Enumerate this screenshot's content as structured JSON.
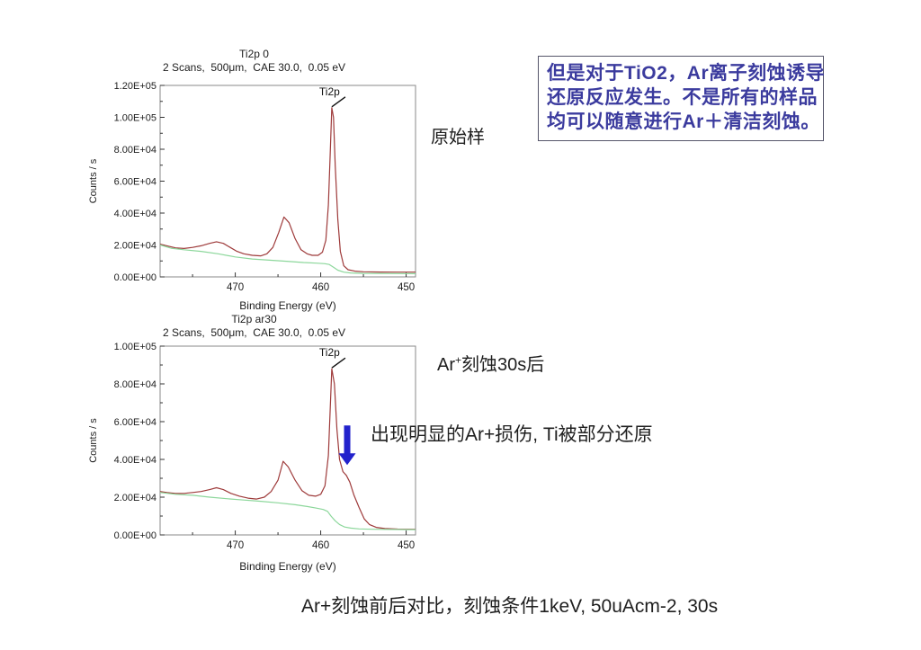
{
  "slide": {
    "background": "#ffffff",
    "note_box": {
      "text_color": "#3b3b9e",
      "border_color": "#55556a",
      "lines": [
        "但是对于TiO2，Ar离子刻蚀诱导",
        "还原反应发生。不是所有的样品",
        "均可以随意进行Ar＋清洁刻蚀。"
      ]
    },
    "labels": {
      "original_sample": "原始样",
      "after_etch_prefix": "Ar",
      "after_etch_sup": "+",
      "after_etch_suffix": "刻蚀30s后",
      "damage_note": "出现明显的Ar+损伤, Ti被部分还原",
      "bottom_caption": "Ar+刻蚀前后对比，刻蚀条件1keV,  50uAcm-2, 30s"
    }
  },
  "chart_data": [
    {
      "type": "line",
      "title": "Ti2p 0",
      "subtitle": "2 Scans,  500μm,  CAE 30.0,  0.05 eV",
      "xlabel": "Binding Energy (eV)",
      "ylabel": "Counts / s",
      "x_axis_reversed": true,
      "xlim": [
        478.8,
        448.9
      ],
      "ylim": [
        0,
        120000
      ],
      "y_tick_labels": [
        "1.20E+05",
        "1.00E+05",
        "8.00E+04",
        "6.00E+04",
        "4.00E+04",
        "2.00E+04",
        "0.00E+00"
      ],
      "x_major_ticks": [
        470,
        460,
        450
      ],
      "x_minor_ticks": [
        475,
        465,
        455
      ],
      "peak": {
        "label": "Ti2p",
        "x": 458.7,
        "y": 106000
      },
      "series": [
        {
          "name": "spectrum",
          "color": "#9e3a3a",
          "points": [
            [
              478.8,
              20500
            ],
            [
              478,
              19500
            ],
            [
              477,
              18200
            ],
            [
              476,
              17800
            ],
            [
              475,
              18500
            ],
            [
              474,
              19500
            ],
            [
              473,
              21000
            ],
            [
              472.2,
              22000
            ],
            [
              471.4,
              21000
            ],
            [
              470.6,
              18500
            ],
            [
              469.8,
              16000
            ],
            [
              469,
              14500
            ],
            [
              468,
              13500
            ],
            [
              467,
              13200
            ],
            [
              466.3,
              14500
            ],
            [
              465.6,
              18500
            ],
            [
              464.9,
              28000
            ],
            [
              464.3,
              37500
            ],
            [
              463.7,
              34000
            ],
            [
              463,
              24000
            ],
            [
              462.3,
              17000
            ],
            [
              461.6,
              14500
            ],
            [
              461,
              13500
            ],
            [
              460.3,
              13500
            ],
            [
              459.8,
              15500
            ],
            [
              459.4,
              23000
            ],
            [
              459.1,
              45000
            ],
            [
              458.9,
              75000
            ],
            [
              458.7,
              106000
            ],
            [
              458.5,
              100000
            ],
            [
              458.3,
              70000
            ],
            [
              458,
              36000
            ],
            [
              457.7,
              16000
            ],
            [
              457.3,
              7000
            ],
            [
              456.8,
              4500
            ],
            [
              456,
              3600
            ],
            [
              455,
              3200
            ],
            [
              453,
              3050
            ],
            [
              451,
              3000
            ],
            [
              448.9,
              3000
            ]
          ]
        },
        {
          "name": "background",
          "color": "#8cd79b",
          "points": [
            [
              478.8,
              20000
            ],
            [
              477.5,
              18000
            ],
            [
              476,
              17000
            ],
            [
              474,
              16000
            ],
            [
              472,
              14500
            ],
            [
              470,
              12500
            ],
            [
              468,
              11200
            ],
            [
              466,
              10500
            ],
            [
              464,
              9800
            ],
            [
              462,
              9000
            ],
            [
              460.5,
              8600
            ],
            [
              459.5,
              8300
            ],
            [
              459,
              7800
            ],
            [
              458.5,
              6000
            ],
            [
              458,
              4200
            ],
            [
              457.3,
              3000
            ],
            [
              456.5,
              2500
            ],
            [
              455,
              2200
            ],
            [
              452,
              2100
            ],
            [
              448.9,
              2000
            ]
          ]
        }
      ]
    },
    {
      "type": "line",
      "title": "Ti2p ar30",
      "subtitle": "2 Scans,  500μm,  CAE 30.0,  0.05 eV",
      "xlabel": "Binding Energy (eV)",
      "ylabel": "Counts / s",
      "x_axis_reversed": true,
      "xlim": [
        478.8,
        448.9
      ],
      "ylim": [
        0,
        100000
      ],
      "y_tick_labels": [
        "1.00E+05",
        "8.00E+04",
        "6.00E+04",
        "4.00E+04",
        "2.00E+04",
        "0.00E+00"
      ],
      "x_major_ticks": [
        470,
        460,
        450
      ],
      "x_minor_ticks": [
        475,
        465,
        455
      ],
      "peak": {
        "label": "Ti2p",
        "x": 458.7,
        "y": 88000
      },
      "damage_arrow": {
        "x": 456.9,
        "y_from": 58000,
        "y_to": 37000,
        "color": "#2222cc"
      },
      "series": [
        {
          "name": "spectrum",
          "color": "#9e3a3a",
          "points": [
            [
              478.8,
              23000
            ],
            [
              478,
              22500
            ],
            [
              477,
              22000
            ],
            [
              476,
              22000
            ],
            [
              475,
              22500
            ],
            [
              474,
              23000
            ],
            [
              473,
              24000
            ],
            [
              472.2,
              25000
            ],
            [
              471.4,
              24000
            ],
            [
              470.5,
              22000
            ],
            [
              469.5,
              20500
            ],
            [
              468.5,
              19500
            ],
            [
              467.5,
              19000
            ],
            [
              466.6,
              20000
            ],
            [
              465.8,
              23000
            ],
            [
              465,
              29000
            ],
            [
              464.4,
              39000
            ],
            [
              463.8,
              36000
            ],
            [
              463,
              29000
            ],
            [
              462.2,
              23500
            ],
            [
              461.4,
              21000
            ],
            [
              460.6,
              20500
            ],
            [
              460,
              21500
            ],
            [
              459.5,
              26000
            ],
            [
              459.1,
              42000
            ],
            [
              458.9,
              65000
            ],
            [
              458.7,
              88000
            ],
            [
              458.4,
              80000
            ],
            [
              458.1,
              56000
            ],
            [
              457.8,
              40000
            ],
            [
              457.4,
              33500
            ],
            [
              457,
              31500
            ],
            [
              456.6,
              28000
            ],
            [
              456.1,
              21000
            ],
            [
              455.5,
              14500
            ],
            [
              454.9,
              8500
            ],
            [
              454.3,
              5500
            ],
            [
              453.5,
              4000
            ],
            [
              452.5,
              3400
            ],
            [
              451,
              3100
            ],
            [
              448.9,
              3000
            ]
          ]
        },
        {
          "name": "background",
          "color": "#8cd79b",
          "points": [
            [
              478.8,
              22500
            ],
            [
              477,
              21500
            ],
            [
              475,
              21000
            ],
            [
              473,
              20000
            ],
            [
              471,
              19200
            ],
            [
              469,
              18500
            ],
            [
              467,
              17800
            ],
            [
              465,
              17000
            ],
            [
              463,
              16000
            ],
            [
              461.5,
              15000
            ],
            [
              460.5,
              14200
            ],
            [
              459.7,
              13500
            ],
            [
              459.2,
              12500
            ],
            [
              458.8,
              10000
            ],
            [
              458.3,
              7500
            ],
            [
              457.8,
              5500
            ],
            [
              457.2,
              4200
            ],
            [
              456.5,
              3600
            ],
            [
              455.5,
              3200
            ],
            [
              454,
              3000
            ],
            [
              452,
              2900
            ],
            [
              448.9,
              2800
            ]
          ]
        }
      ]
    }
  ]
}
